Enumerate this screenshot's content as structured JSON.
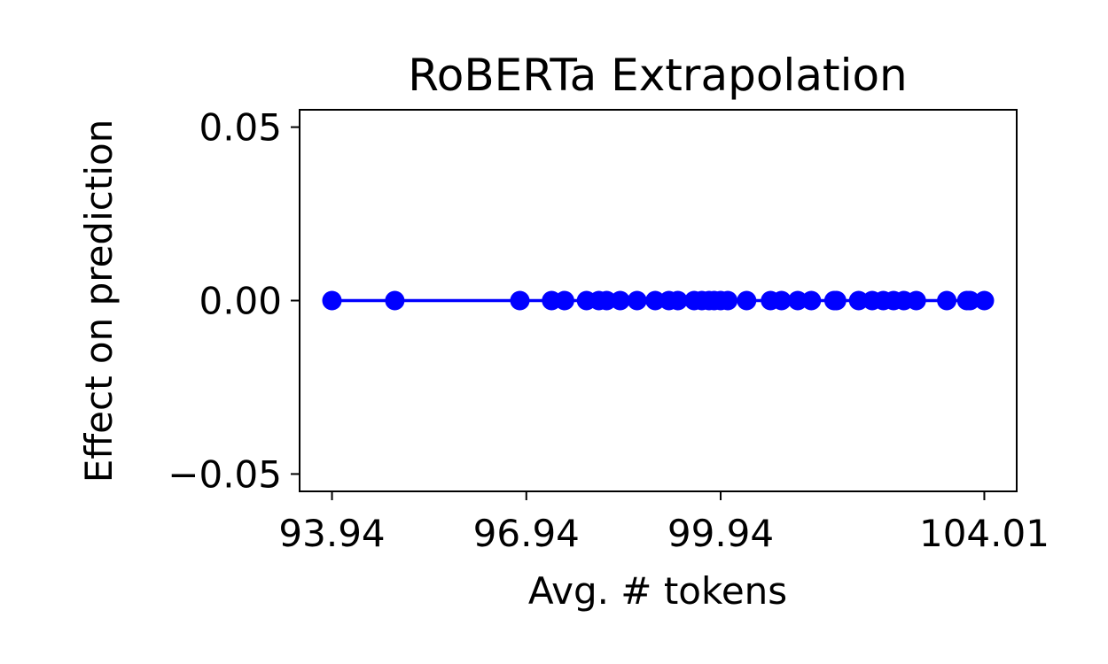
{
  "chart_data": {
    "type": "line",
    "title": "RoBERTa Extrapolation",
    "xlabel": "Avg. # tokens",
    "ylabel": "Effect on prediction",
    "xlim": [
      93.44,
      104.51
    ],
    "ylim": [
      -0.055,
      0.055
    ],
    "xticks": [
      93.94,
      96.94,
      99.94,
      104.01
    ],
    "xtick_labels": [
      "93.94",
      "96.94",
      "99.94",
      "104.01"
    ],
    "yticks": [
      0.05,
      0.0,
      -0.05
    ],
    "ytick_labels": [
      "0.05",
      "0.00",
      "−0.05"
    ],
    "grid": false,
    "series": [
      {
        "color": "#0000ff",
        "marker": "circle",
        "x": [
          93.94,
          94.91,
          96.84,
          97.33,
          97.53,
          97.87,
          98.06,
          98.18,
          98.39,
          98.65,
          98.93,
          99.14,
          99.28,
          99.53,
          99.65,
          99.76,
          99.84,
          99.94,
          100.05,
          100.34,
          100.71,
          100.88,
          101.13,
          101.34,
          101.69,
          101.73,
          102.07,
          102.28,
          102.45,
          102.61,
          102.77,
          102.96,
          103.43,
          103.74,
          103.79,
          104.01
        ],
        "y": [
          0,
          0,
          0,
          0,
          0,
          0,
          0,
          0,
          0,
          0,
          0,
          0,
          0,
          0,
          0,
          0,
          0,
          0,
          0,
          0,
          0,
          0,
          0,
          0,
          0,
          0,
          0,
          0,
          0,
          0,
          0,
          0,
          0,
          0,
          0,
          0
        ]
      }
    ]
  }
}
